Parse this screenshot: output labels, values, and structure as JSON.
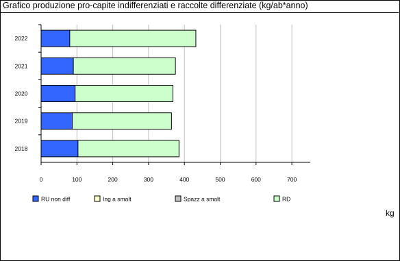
{
  "chart_data": {
    "type": "bar",
    "orientation": "horizontal",
    "stacked": true,
    "title": "Grafico produzione pro-capite indifferenziati e raccolte differenziate (kg/ab*anno)",
    "unit": "kg",
    "categories": [
      "2022",
      "2021",
      "2020",
      "2019",
      "2018"
    ],
    "series": [
      {
        "name": "RU non diff",
        "color": "#3366ff",
        "values": [
          80,
          90,
          95,
          87,
          103
        ]
      },
      {
        "name": "Ing a smalt",
        "color": "#ffffcc",
        "values": [
          0,
          0,
          0,
          0,
          0
        ]
      },
      {
        "name": "Spazz a smalt",
        "color": "#bfbfbf",
        "values": [
          0,
          0,
          0,
          0,
          0
        ]
      },
      {
        "name": "RD",
        "color": "#ccffcc",
        "values": [
          352,
          285,
          273,
          277,
          282
        ]
      }
    ],
    "xlim": [
      0,
      750
    ],
    "xticks": [
      0,
      100,
      200,
      300,
      400,
      500,
      600,
      700
    ],
    "grid": "vertical",
    "legend_position": "bottom"
  }
}
